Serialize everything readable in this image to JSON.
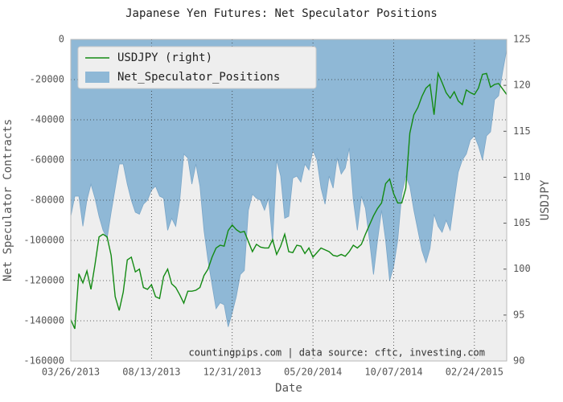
{
  "chart_data": {
    "type": "area_line",
    "title": "Japanese Yen Futures: Net Speculator Positions",
    "xlabel": "Date",
    "ylabel": "Net Speculator Contracts",
    "y2label": "USDJPY",
    "annotation": "countingpips.com | data source: cftc, investing.com",
    "legend": "upper left",
    "grid": true,
    "x": [
      "03/26/2013",
      "04/02/2013",
      "04/09/2013",
      "04/16/2013",
      "04/23/2013",
      "04/30/2013",
      "05/07/2013",
      "05/14/2013",
      "05/21/2013",
      "05/28/2013",
      "06/04/2013",
      "06/11/2013",
      "06/18/2013",
      "06/25/2013",
      "07/02/2013",
      "07/09/2013",
      "07/16/2013",
      "07/23/2013",
      "07/30/2013",
      "08/06/2013",
      "08/13/2013",
      "08/20/2013",
      "08/27/2013",
      "09/03/2013",
      "09/10/2013",
      "09/17/2013",
      "09/24/2013",
      "10/01/2013",
      "10/08/2013",
      "10/15/2013",
      "10/22/2013",
      "10/29/2013",
      "11/05/2013",
      "11/12/2013",
      "11/19/2013",
      "11/26/2013",
      "12/03/2013",
      "12/10/2013",
      "12/17/2013",
      "12/24/2013",
      "12/31/2013",
      "01/07/2014",
      "01/14/2014",
      "01/21/2014",
      "01/28/2014",
      "02/04/2014",
      "02/11/2014",
      "02/18/2014",
      "02/25/2014",
      "03/04/2014",
      "03/11/2014",
      "03/18/2014",
      "03/25/2014",
      "04/01/2014",
      "04/08/2014",
      "04/15/2014",
      "04/22/2014",
      "04/29/2014",
      "05/06/2014",
      "05/13/2014",
      "05/20/2014",
      "05/27/2014",
      "06/03/2014",
      "06/10/2014",
      "06/17/2014",
      "06/24/2014",
      "07/01/2014",
      "07/08/2014",
      "07/15/2014",
      "07/22/2014",
      "07/29/2014",
      "08/05/2014",
      "08/12/2014",
      "08/19/2014",
      "08/26/2014",
      "09/02/2014",
      "09/09/2014",
      "09/16/2014",
      "09/23/2014",
      "09/30/2014",
      "10/07/2014",
      "10/14/2014",
      "10/21/2014",
      "10/28/2014",
      "11/04/2014",
      "11/11/2014",
      "11/18/2014",
      "11/25/2014",
      "12/02/2014",
      "12/09/2014",
      "12/16/2014",
      "12/23/2014",
      "12/30/2014",
      "01/06/2015",
      "01/13/2015",
      "01/20/2015",
      "01/27/2015",
      "02/03/2015",
      "02/10/2015",
      "02/17/2015",
      "02/24/2015",
      "03/03/2015",
      "03/10/2015",
      "03/17/2015",
      "03/24/2015",
      "03/31/2015",
      "04/07/2015",
      "04/14/2015",
      "04/21/2015"
    ],
    "xlim": [
      "03/26/2013",
      "04/21/2015"
    ],
    "xticks": [
      "03/26/2013",
      "08/13/2013",
      "12/31/2013",
      "05/20/2014",
      "10/07/2014",
      "02/24/2015"
    ],
    "ylim": [
      -160000,
      0
    ],
    "yticks": [
      -160000,
      -140000,
      -120000,
      -100000,
      -80000,
      -60000,
      -40000,
      -20000,
      0
    ],
    "y2lim": [
      90,
      125
    ],
    "y2ticks": [
      90,
      95,
      100,
      105,
      110,
      115,
      120,
      125
    ],
    "series": [
      {
        "name": "Net_Speculator_Positions",
        "color": "#8fb8d6",
        "kind": "area",
        "values": [
          -88000,
          -78000,
          -78000,
          -93000,
          -80000,
          -72000,
          -79000,
          -88000,
          -95000,
          -99000,
          -86000,
          -74000,
          -62000,
          -62000,
          -72000,
          -80000,
          -86000,
          -87000,
          -82000,
          -80000,
          -75000,
          -73000,
          -78000,
          -79000,
          -95000,
          -89000,
          -93000,
          -80000,
          -57000,
          -59000,
          -72000,
          -62000,
          -73000,
          -95000,
          -110000,
          -122000,
          -134000,
          -131000,
          -132000,
          -143000,
          -136000,
          -128000,
          -117000,
          -115000,
          -85000,
          -77000,
          -79000,
          -80000,
          -85000,
          -79000,
          -101000,
          -60000,
          -68000,
          -89000,
          -88000,
          -69000,
          -68000,
          -71000,
          -62000,
          -65000,
          -55000,
          -60000,
          -74000,
          -82000,
          -68000,
          -74000,
          -59000,
          -67000,
          -64000,
          -54000,
          -80000,
          -95000,
          -78000,
          -84000,
          -100000,
          -117000,
          -100000,
          -85000,
          -100000,
          -120000,
          -113000,
          -100000,
          -77000,
          -68000,
          -73000,
          -85000,
          -95000,
          -105000,
          -111000,
          -104000,
          -87000,
          -93000,
          -96000,
          -90000,
          -95000,
          -80000,
          -66000,
          -60000,
          -57000,
          -50000,
          -48000,
          -53000,
          -60000,
          -48000,
          -46000,
          -30000,
          -28000,
          -16000,
          -5000
        ]
      },
      {
        "name": "USDJPY (right)",
        "color": "#138a13",
        "kind": "line",
        "axis": "y2",
        "values": [
          94.5,
          93.5,
          99.5,
          98.5,
          99.8,
          97.8,
          100.5,
          103.5,
          103.8,
          103.5,
          101.5,
          97,
          95.5,
          97.5,
          101,
          101.3,
          99.7,
          100,
          98,
          97.8,
          98.3,
          97,
          96.8,
          99.2,
          100,
          98.4,
          98,
          97.2,
          96.3,
          97.6,
          97.6,
          97.7,
          98,
          99.3,
          100,
          101.3,
          102.3,
          102.6,
          102.5,
          104.2,
          104.8,
          104.3,
          104,
          104.1,
          103,
          101.9,
          102.7,
          102.4,
          102.3,
          102.3,
          103.2,
          101.6,
          102.5,
          103.8,
          101.9,
          101.8,
          102.6,
          102.5,
          101.7,
          102.3,
          101.3,
          101.8,
          102.3,
          102.1,
          101.9,
          101.5,
          101.4,
          101.6,
          101.4,
          101.9,
          102.6,
          102.3,
          102.7,
          103.8,
          104.8,
          105.8,
          106.6,
          107.2,
          109.3,
          109.8,
          108.2,
          107.2,
          107.2,
          108.8,
          114.8,
          116.8,
          117.6,
          118.8,
          119.7,
          120.1,
          116.8,
          121.3,
          120.3,
          119.2,
          118.6,
          119.3,
          118.3,
          117.9,
          119.5,
          119.2,
          119,
          119.7,
          121.2,
          121.3,
          119.8,
          120.1,
          120.2,
          119.6,
          119
        ]
      }
    ]
  }
}
